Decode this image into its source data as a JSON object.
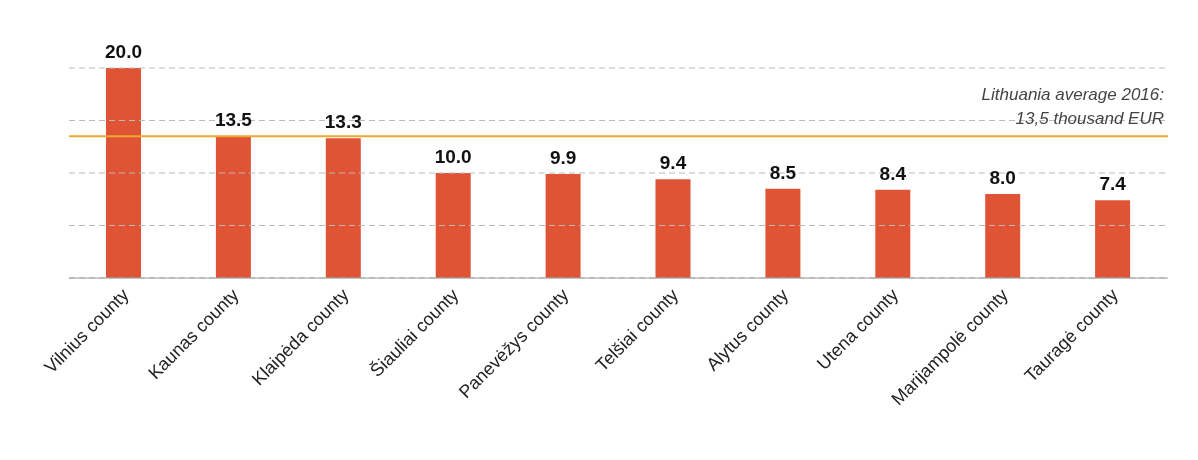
{
  "chart_data": {
    "type": "bar",
    "categories": [
      "Vilnius county",
      "Kaunas county",
      "Klaipėda county",
      "Šiauliai county",
      "Panevėžys county",
      "Telšiai county",
      "Alytus county",
      "Utena county",
      "Marijampolė county",
      "Tauragė county"
    ],
    "values": [
      20.0,
      13.5,
      13.3,
      10.0,
      9.9,
      9.4,
      8.5,
      8.4,
      8.0,
      7.4
    ],
    "value_labels": [
      "20.0",
      "13.5",
      "13.3",
      "10.0",
      "9.9",
      "9.4",
      "8.5",
      "8.4",
      "8.0",
      "7.4"
    ],
    "color": "#e05436",
    "ylim": [
      0,
      20
    ],
    "yticks": [
      {
        "value": 0,
        "label": null
      },
      {
        "value": 5,
        "label": null
      },
      {
        "value": 10,
        "label": null
      },
      {
        "value": 15,
        "label": null
      },
      {
        "value": 20,
        "label": null
      }
    ],
    "tick_labels": "x",
    "grid": "y",
    "ref_lines": [
      {
        "axis": "y",
        "value": 13.5,
        "label": "Lithuania  average 2016:\n13,5 thousand EUR",
        "color": "#f0a830",
        "line_style": "solid"
      }
    ]
  }
}
